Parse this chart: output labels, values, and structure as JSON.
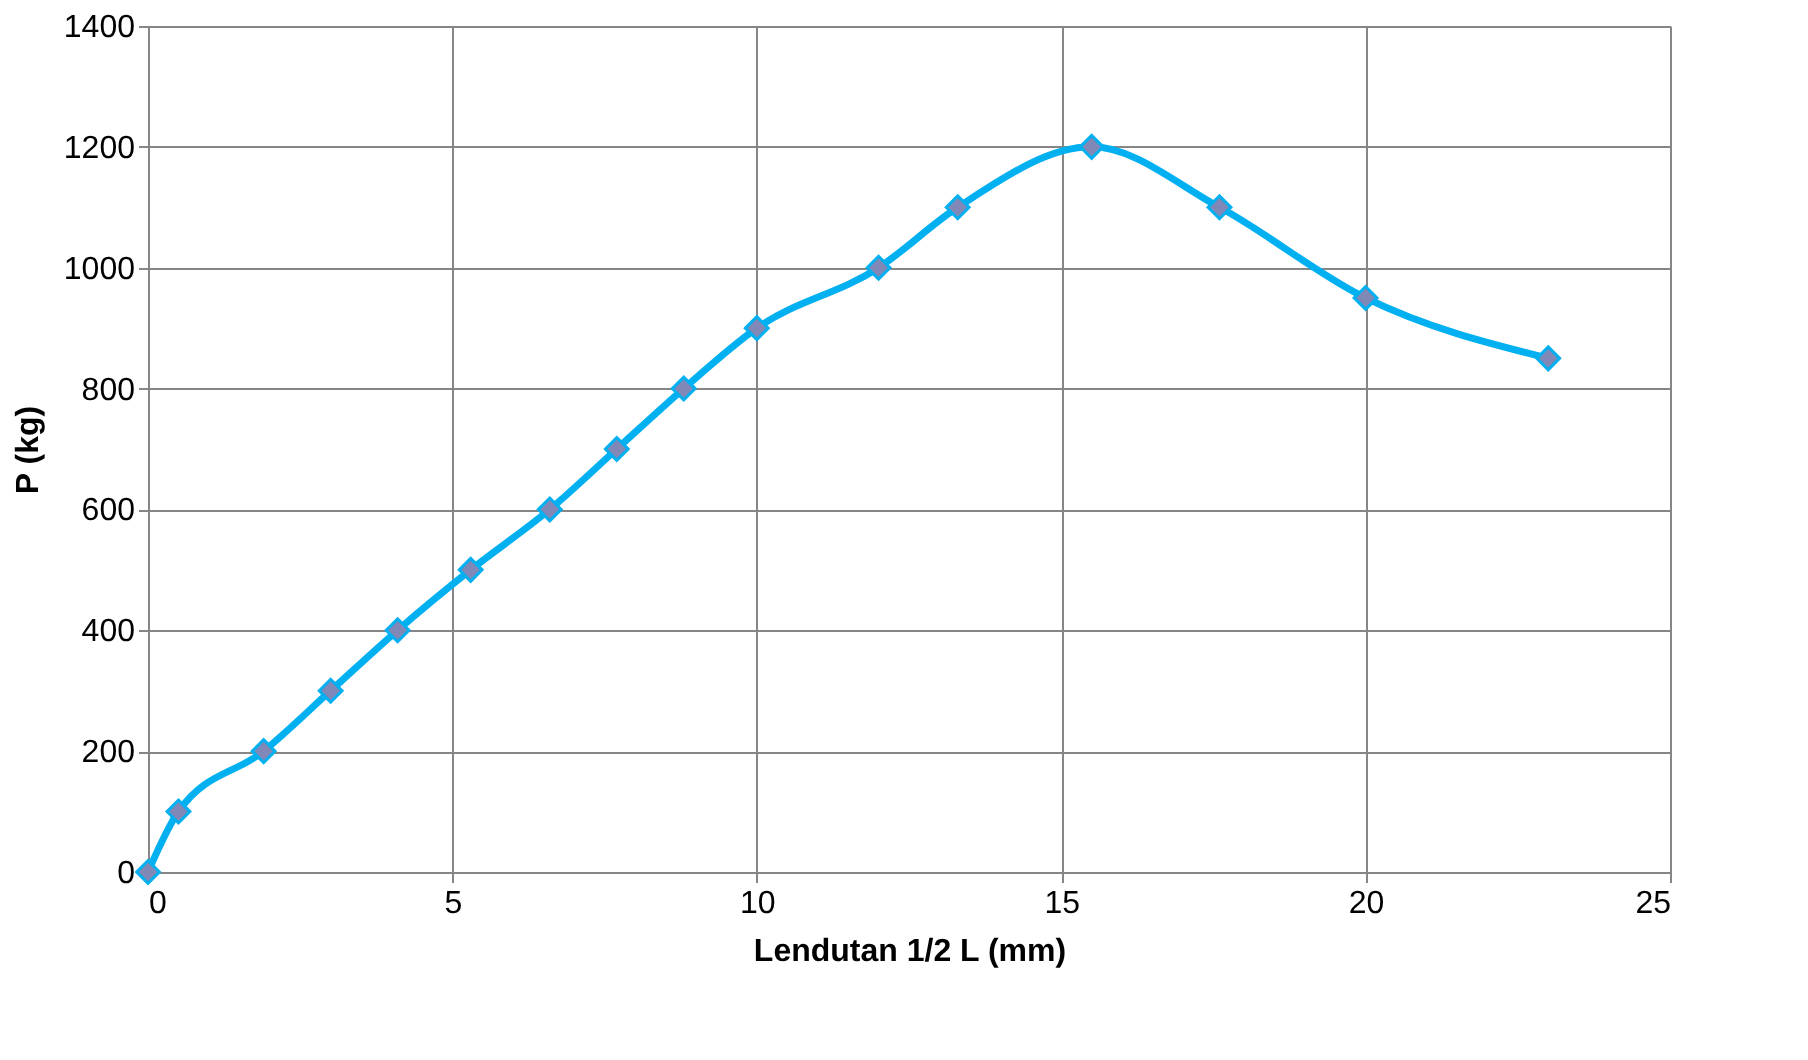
{
  "chart_data": {
    "type": "line",
    "xlabel": "Lendutan 1/2 L (mm)",
    "ylabel": "P (kg)",
    "x": [
      0,
      0.5,
      1.9,
      3.0,
      4.1,
      5.3,
      6.6,
      7.7,
      8.8,
      10.0,
      12.0,
      13.3,
      15.5,
      17.6,
      20.0,
      23.0
    ],
    "series": [
      {
        "color": "#00b0f0",
        "values": [
          0,
          100,
          200,
          300,
          400,
          500,
          600,
          700,
          800,
          900,
          1000,
          1100,
          1200,
          1100,
          950,
          850
        ]
      }
    ],
    "xlim": [
      0,
      25
    ],
    "xticks": [
      0,
      5,
      10,
      15,
      20,
      25
    ],
    "ylim": [
      0,
      1400
    ],
    "yticks": [
      0,
      200,
      400,
      600,
      800,
      1000,
      1200,
      1400
    ],
    "grid": true,
    "marker": "diamond",
    "line_style": "solid"
  }
}
